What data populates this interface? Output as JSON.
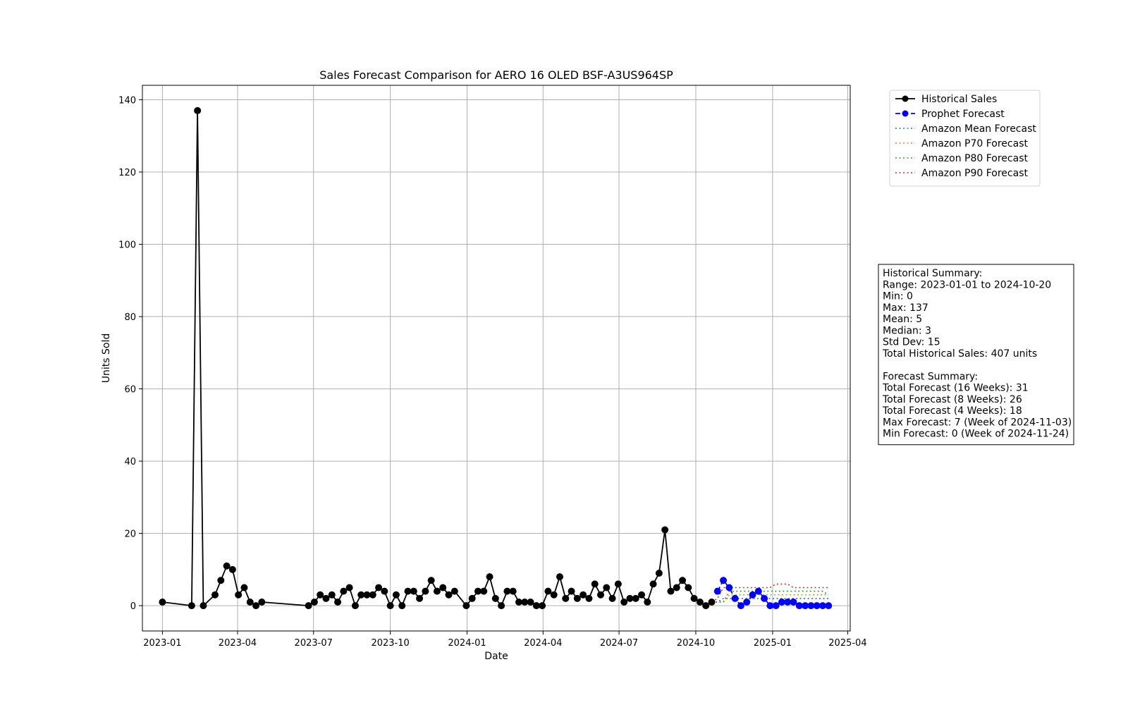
{
  "chart_data": {
    "type": "line",
    "title": "Sales Forecast Comparison for AERO 16 OLED BSF-A3US964SP",
    "xlabel": "Date",
    "ylabel": "Units Sold",
    "xlim": [
      "2022-12-08",
      "2025-04-04"
    ],
    "ylim": [
      -7,
      144
    ],
    "x_ticks": [
      "2023-01-01",
      "2023-04-01",
      "2023-07-01",
      "2023-10-01",
      "2024-01-01",
      "2024-04-01",
      "2024-07-01",
      "2024-10-01",
      "2025-01-01",
      "2025-04-01"
    ],
    "x_tick_labels": [
      "2023-01",
      "2023-04",
      "2023-07",
      "2023-10",
      "2024-01",
      "2024-04",
      "2024-07",
      "2024-10",
      "2025-01",
      "2025-04"
    ],
    "y_ticks": [
      0,
      20,
      40,
      60,
      80,
      100,
      120,
      140
    ],
    "y_tick_labels": [
      "0",
      "20",
      "40",
      "60",
      "80",
      "100",
      "120",
      "140"
    ],
    "grid": true,
    "legend_position": "outside-top-right",
    "series": [
      {
        "name": "Historical Sales",
        "color": "#000000",
        "style": "solid-marker",
        "x": [
          "2023-01-01",
          "2023-02-05",
          "2023-02-12",
          "2023-02-19",
          "2023-03-05",
          "2023-03-12",
          "2023-03-19",
          "2023-03-26",
          "2023-04-02",
          "2023-04-09",
          "2023-04-16",
          "2023-04-23",
          "2023-04-30",
          "2023-06-25",
          "2023-07-02",
          "2023-07-09",
          "2023-07-16",
          "2023-07-23",
          "2023-07-30",
          "2023-08-06",
          "2023-08-13",
          "2023-08-20",
          "2023-08-27",
          "2023-09-03",
          "2023-09-10",
          "2023-09-17",
          "2023-09-24",
          "2023-10-01",
          "2023-10-08",
          "2023-10-15",
          "2023-10-22",
          "2023-10-29",
          "2023-11-05",
          "2023-11-12",
          "2023-11-19",
          "2023-11-26",
          "2023-12-03",
          "2023-12-10",
          "2023-12-17",
          "2023-12-31",
          "2024-01-07",
          "2024-01-14",
          "2024-01-21",
          "2024-01-28",
          "2024-02-04",
          "2024-02-11",
          "2024-02-18",
          "2024-02-25",
          "2024-03-03",
          "2024-03-10",
          "2024-03-17",
          "2024-03-24",
          "2024-03-31",
          "2024-04-07",
          "2024-04-14",
          "2024-04-21",
          "2024-04-28",
          "2024-05-05",
          "2024-05-12",
          "2024-05-19",
          "2024-05-26",
          "2024-06-02",
          "2024-06-09",
          "2024-06-16",
          "2024-06-23",
          "2024-06-30",
          "2024-07-07",
          "2024-07-14",
          "2024-07-21",
          "2024-07-28",
          "2024-08-04",
          "2024-08-11",
          "2024-08-18",
          "2024-08-25",
          "2024-09-01",
          "2024-09-08",
          "2024-09-15",
          "2024-09-22",
          "2024-09-29",
          "2024-10-06",
          "2024-10-13",
          "2024-10-20"
        ],
        "values": [
          1,
          0,
          137,
          0,
          3,
          7,
          11,
          10,
          3,
          5,
          1,
          0,
          1,
          0,
          1,
          3,
          2,
          3,
          1,
          4,
          5,
          0,
          3,
          3,
          3,
          5,
          4,
          0,
          3,
          0,
          4,
          4,
          2,
          4,
          7,
          4,
          5,
          3,
          4,
          0,
          2,
          4,
          4,
          8,
          2,
          0,
          4,
          4,
          1,
          1,
          1,
          0,
          0,
          4,
          3,
          8,
          2,
          4,
          2,
          3,
          2,
          6,
          3,
          5,
          2,
          6,
          1,
          2,
          2,
          3,
          1,
          6,
          9,
          21,
          4,
          5,
          7,
          5,
          2,
          1,
          0,
          1
        ]
      },
      {
        "name": "Prophet Forecast",
        "color": "#0000ff",
        "style": "dashed-marker",
        "x": [
          "2024-10-27",
          "2024-11-03",
          "2024-11-10",
          "2024-11-17",
          "2024-11-24",
          "2024-12-01",
          "2024-12-08",
          "2024-12-15",
          "2024-12-22",
          "2024-12-29",
          "2025-01-05",
          "2025-01-12",
          "2025-01-19",
          "2025-01-26",
          "2025-02-02",
          "2025-02-09",
          "2025-02-16",
          "2025-02-23",
          "2025-03-02",
          "2025-03-09"
        ],
        "values": [
          4,
          7,
          5,
          2,
          0,
          1,
          3,
          4,
          2,
          0,
          0,
          1,
          1,
          1,
          0,
          0,
          0,
          0,
          0,
          0
        ]
      },
      {
        "name": "Amazon Mean Forecast",
        "color": "#1f77b4",
        "style": "dotted",
        "x": [
          "2024-10-20",
          "2024-10-27",
          "2024-11-03",
          "2024-11-10",
          "2024-11-17",
          "2024-11-24",
          "2024-12-01",
          "2024-12-08",
          "2024-12-15",
          "2024-12-22",
          "2024-12-29",
          "2025-01-05",
          "2025-01-12",
          "2025-01-19",
          "2025-01-26",
          "2025-02-02",
          "2025-02-09",
          "2025-02-16",
          "2025-02-23",
          "2025-03-02",
          "2025-03-09"
        ],
        "values": [
          1,
          1,
          2,
          2,
          2,
          2,
          2,
          2,
          2,
          2,
          2,
          2,
          2,
          2,
          2,
          2,
          2,
          2,
          2,
          2,
          2
        ]
      },
      {
        "name": "Amazon P70 Forecast",
        "color": "#ff7f0e",
        "style": "dotted",
        "x": [
          "2024-10-20",
          "2024-10-27",
          "2024-11-03",
          "2024-11-10",
          "2024-11-17",
          "2024-11-24",
          "2024-12-01",
          "2024-12-08",
          "2024-12-15",
          "2024-12-22",
          "2024-12-29",
          "2025-01-05",
          "2025-01-12",
          "2025-01-19",
          "2025-01-26",
          "2025-02-02",
          "2025-02-09",
          "2025-02-16",
          "2025-02-23",
          "2025-03-02",
          "2025-03-09"
        ],
        "values": [
          1,
          1,
          1,
          3,
          3,
          3,
          3,
          3,
          3,
          3,
          3,
          3,
          3,
          3,
          3,
          3,
          3,
          3,
          3,
          3,
          3
        ]
      },
      {
        "name": "Amazon P80 Forecast",
        "color": "#2ca02c",
        "style": "dotted",
        "x": [
          "2024-10-20",
          "2024-10-27",
          "2024-11-03",
          "2024-11-10",
          "2024-11-17",
          "2024-11-24",
          "2024-12-01",
          "2024-12-08",
          "2024-12-15",
          "2024-12-22",
          "2024-12-29",
          "2025-01-05",
          "2025-01-12",
          "2025-01-19",
          "2025-01-26",
          "2025-02-02",
          "2025-02-09",
          "2025-02-16",
          "2025-02-23",
          "2025-03-02",
          "2025-03-09"
        ],
        "values": [
          1,
          1,
          1,
          4,
          4,
          4,
          4,
          4,
          4,
          4,
          4,
          4,
          4,
          4,
          4,
          4,
          4,
          4,
          4,
          4,
          3
        ]
      },
      {
        "name": "Amazon P90 Forecast",
        "color": "#d62728",
        "style": "dotted",
        "x": [
          "2024-10-20",
          "2024-10-27",
          "2024-11-03",
          "2024-11-10",
          "2024-11-17",
          "2024-11-24",
          "2024-12-01",
          "2024-12-08",
          "2024-12-15",
          "2024-12-22",
          "2024-12-29",
          "2025-01-05",
          "2025-01-12",
          "2025-01-19",
          "2025-01-26",
          "2025-02-02",
          "2025-02-09",
          "2025-02-16",
          "2025-02-23",
          "2025-03-02",
          "2025-03-09"
        ],
        "values": [
          1,
          2,
          5,
          5,
          5,
          5,
          5,
          5,
          5,
          5,
          5,
          6,
          6,
          6,
          5,
          5,
          5,
          5,
          5,
          5,
          5
        ]
      }
    ],
    "summary_box": [
      "Historical Summary:",
      "Range: 2023-01-01 to 2024-10-20",
      "Min: 0",
      "Max: 137",
      "Mean: 5",
      "Median: 3",
      "Std Dev: 15",
      "Total Historical Sales: 407 units",
      "",
      "Forecast Summary:",
      "Total Forecast (16 Weeks): 31",
      "Total Forecast (8 Weeks): 26",
      "Total Forecast (4 Weeks): 18",
      "Max Forecast: 7 (Week of 2024-11-03)",
      "Min Forecast: 0 (Week of 2024-11-24)"
    ]
  }
}
